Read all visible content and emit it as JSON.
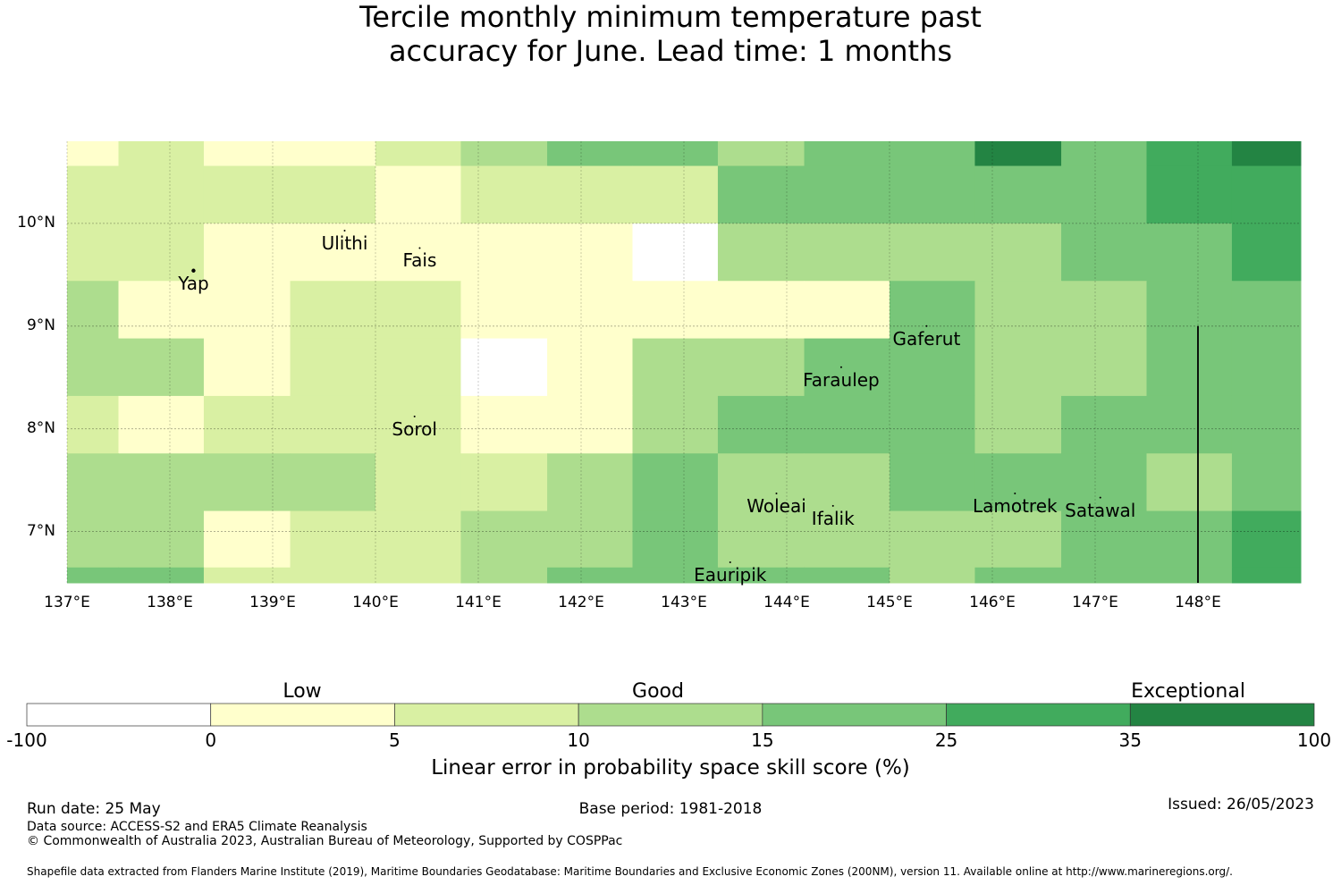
{
  "title": {
    "line1": "Tercile monthly minimum temperature past",
    "line2": "accuracy for June. Lead time: 1 months"
  },
  "map": {
    "extent": {
      "lon_min": 137.0,
      "lon_max": 149.0,
      "lat_min": 6.5,
      "lat_max": 10.8
    },
    "lat_gridlines": [
      10,
      9,
      8,
      7
    ],
    "lat_labels": [
      "10°N",
      "9°N",
      "8°N",
      "7°N"
    ],
    "lon_gridlines": [
      137,
      138,
      139,
      140,
      141,
      142,
      143,
      144,
      145,
      146,
      147,
      148
    ],
    "lon_labels": [
      "137°E",
      "138°E",
      "139°E",
      "140°E",
      "141°E",
      "142°E",
      "143°E",
      "144°E",
      "145°E",
      "146°E",
      "147°E",
      "148°E"
    ],
    "cell_lon_edges": [
      137.0,
      137.5,
      138.33,
      139.17,
      140.0,
      140.83,
      141.67,
      142.5,
      143.33,
      144.17,
      145.0,
      145.83,
      146.67,
      147.5,
      148.33,
      149.0
    ],
    "cell_lat_edges": [
      10.8,
      10.56,
      9.55,
      8.88,
      8.2,
      7.64,
      7.07,
      6.5
    ],
    "grid_class_rows": [
      [
        1,
        2,
        1,
        1,
        2,
        3,
        4,
        4,
        3,
        4,
        4,
        6,
        4,
        5,
        6
      ],
      [
        2,
        2,
        2,
        2,
        1,
        2,
        2,
        2,
        4,
        4,
        4,
        4,
        4,
        5,
        5
      ],
      [
        2,
        2,
        1,
        1,
        1,
        1,
        1,
        0,
        3,
        3,
        3,
        3,
        4,
        4,
        5
      ],
      [
        3,
        1,
        1,
        2,
        2,
        1,
        1,
        1,
        1,
        1,
        4,
        3,
        3,
        4,
        4
      ],
      [
        3,
        3,
        1,
        2,
        2,
        0,
        1,
        3,
        3,
        4,
        4,
        3,
        3,
        4,
        4
      ],
      [
        2,
        1,
        2,
        2,
        2,
        1,
        1,
        3,
        4,
        4,
        4,
        3,
        4,
        4,
        4
      ],
      [
        3,
        3,
        3,
        3,
        2,
        2,
        3,
        4,
        3,
        3,
        4,
        4,
        4,
        3,
        4
      ],
      [
        3,
        3,
        1,
        2,
        2,
        3,
        3,
        4,
        3,
        3,
        3,
        3,
        4,
        4,
        5
      ],
      [
        4,
        4,
        2,
        2,
        2,
        3,
        4,
        4,
        4,
        4,
        3,
        4,
        4,
        4,
        5
      ]
    ],
    "row_lat_edges": [
      10.8,
      10.56,
      10.0,
      9.44,
      8.88,
      8.32,
      7.76,
      7.2,
      6.65,
      6.5
    ],
    "boundary_line": {
      "lon": 148.0,
      "lat_top": 9.0,
      "lat_bottom": 6.5
    },
    "places": [
      {
        "name": "Ulithi",
        "lon": 139.7,
        "lat": 9.93
      },
      {
        "name": "Fais",
        "lon": 140.43,
        "lat": 9.76
      },
      {
        "name": "Yap",
        "lon": 138.23,
        "lat": 9.54
      },
      {
        "name": "Gaferut",
        "lon": 145.36,
        "lat": 9.0
      },
      {
        "name": "Faraulep",
        "lon": 144.53,
        "lat": 8.6
      },
      {
        "name": "Sorol",
        "lon": 140.38,
        "lat": 8.12
      },
      {
        "name": "Woleai",
        "lon": 143.9,
        "lat": 7.37
      },
      {
        "name": "Ifalik",
        "lon": 144.45,
        "lat": 7.25
      },
      {
        "name": "Lamotrek",
        "lon": 146.22,
        "lat": 7.37
      },
      {
        "name": "Satawal",
        "lon": 147.05,
        "lat": 7.33
      },
      {
        "name": "Eauripik",
        "lon": 143.45,
        "lat": 6.7
      }
    ]
  },
  "legend": {
    "headings": [
      "Low",
      "Good",
      "Exceptional"
    ],
    "bin_edges": [
      "-100",
      "0",
      "5",
      "10",
      "15",
      "25",
      "35",
      "100"
    ],
    "colors": [
      "#ffffff",
      "#ffffcc",
      "#d9f0a3",
      "#addd8e",
      "#78c679",
      "#41ab5d",
      "#238443"
    ],
    "title": "Linear error in probability space skill score (%)"
  },
  "footer": {
    "run_date": "Run date: 25 May",
    "base_period": "Base period: 1981-2018",
    "issued": "Issued: 26/05/2023",
    "data_source": "Data source: ACCESS-S2 and ERA5 Climate Reanalysis",
    "copyright": "© Commonwealth of Australia 2023, Australian Bureau of Meteorology, Supported by COSPPac",
    "shapefile": "Shapefile data extracted from Flanders Marine Institute (2019), Maritime Boundaries Geodatabase: Maritime Boundaries and Exclusive Economic Zones (200NM), version 11. Available online at http://www.marineregions.org/."
  }
}
